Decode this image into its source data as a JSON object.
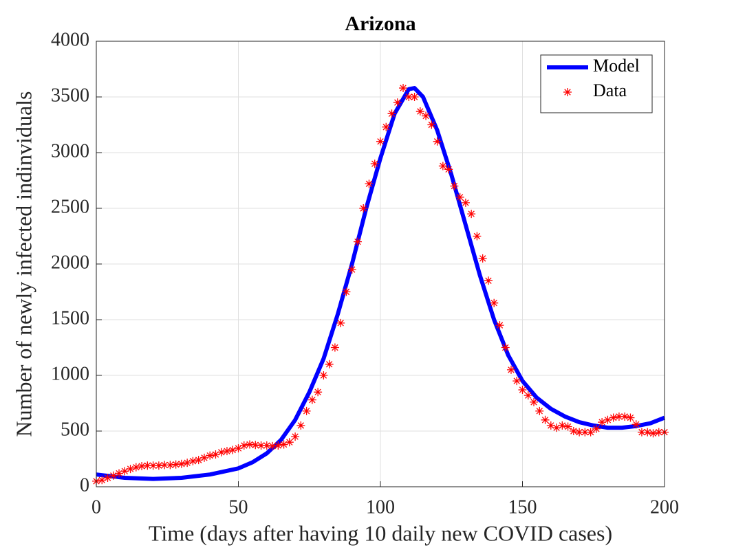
{
  "chart_data": {
    "type": "line",
    "title": "Arizona",
    "xlabel": "Time (days after having 10 daily new COVID cases)",
    "ylabel": "Number of newly infected indinviduals",
    "xlim": [
      0,
      200
    ],
    "xticks": [
      0,
      50,
      100,
      150,
      200
    ],
    "ylim": [
      0,
      4000
    ],
    "yticks": [
      0,
      500,
      1000,
      1500,
      2000,
      2500,
      3000,
      3500,
      4000
    ],
    "grid": true,
    "legend": "northeast",
    "series": [
      {
        "name": "Model",
        "color": "#0000ff",
        "style": "line",
        "x": [
          0,
          10,
          20,
          30,
          40,
          50,
          55,
          60,
          65,
          70,
          75,
          80,
          85,
          90,
          95,
          100,
          105,
          110,
          112,
          115,
          120,
          125,
          130,
          135,
          140,
          145,
          150,
          155,
          160,
          165,
          170,
          175,
          180,
          185,
          190,
          195,
          200
        ],
        "values": [
          110,
          80,
          70,
          80,
          110,
          165,
          220,
          300,
          420,
          600,
          850,
          1150,
          1550,
          2000,
          2500,
          2950,
          3350,
          3570,
          3580,
          3500,
          3200,
          2800,
          2350,
          1900,
          1500,
          1180,
          950,
          800,
          700,
          630,
          580,
          550,
          530,
          530,
          545,
          570,
          620
        ]
      },
      {
        "name": "Data",
        "color": "#ff0000",
        "style": "marker",
        "x": [
          0,
          2,
          4,
          6,
          8,
          10,
          12,
          14,
          16,
          18,
          20,
          22,
          24,
          26,
          28,
          30,
          32,
          34,
          36,
          38,
          40,
          42,
          44,
          46,
          48,
          50,
          52,
          54,
          56,
          58,
          60,
          62,
          64,
          66,
          68,
          70,
          72,
          74,
          76,
          78,
          80,
          82,
          84,
          86,
          88,
          90,
          92,
          94,
          96,
          98,
          100,
          102,
          104,
          106,
          108,
          110,
          112,
          114,
          116,
          118,
          120,
          122,
          124,
          126,
          128,
          130,
          132,
          134,
          136,
          138,
          140,
          142,
          144,
          146,
          148,
          150,
          152,
          154,
          156,
          158,
          160,
          162,
          164,
          166,
          168,
          170,
          172,
          174,
          176,
          178,
          180,
          182,
          184,
          186,
          188,
          190,
          192,
          194,
          196,
          198,
          200
        ],
        "values": [
          50,
          60,
          80,
          100,
          120,
          140,
          160,
          175,
          185,
          190,
          190,
          190,
          195,
          195,
          200,
          205,
          215,
          230,
          240,
          260,
          280,
          290,
          310,
          320,
          330,
          345,
          370,
          380,
          375,
          370,
          370,
          365,
          370,
          380,
          400,
          450,
          550,
          680,
          780,
          850,
          1000,
          1100,
          1250,
          1470,
          1750,
          1950,
          2200,
          2500,
          2720,
          2900,
          3100,
          3230,
          3350,
          3450,
          3580,
          3500,
          3500,
          3370,
          3330,
          3250,
          3100,
          2880,
          2850,
          2700,
          2600,
          2550,
          2450,
          2250,
          2050,
          1850,
          1650,
          1450,
          1250,
          1050,
          950,
          870,
          820,
          760,
          680,
          600,
          550,
          530,
          550,
          540,
          500,
          490,
          490,
          490,
          520,
          580,
          600,
          620,
          630,
          630,
          620,
          560,
          490,
          490,
          480,
          490,
          490
        ]
      }
    ]
  }
}
